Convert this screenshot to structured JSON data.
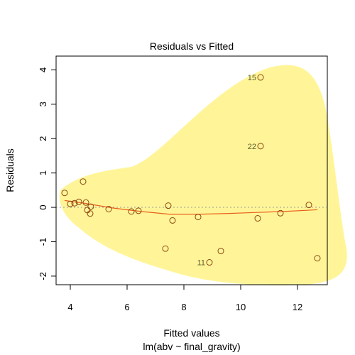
{
  "chart_data": {
    "type": "scatter",
    "title": "Residuals vs Fitted",
    "xlabel": "Fitted values",
    "xlabel_sub": "lm(abv ~ final_gravity)",
    "ylabel": "Residuals",
    "xlim": [
      3.5,
      13.05
    ],
    "ylim": [
      -2.25,
      4.4
    ],
    "xticks": [
      4,
      6,
      8,
      10,
      12
    ],
    "yticks": [
      -2,
      -1,
      0,
      1,
      2,
      3,
      4
    ],
    "point_color": "#8b4513",
    "smooth_color": "#e8601c",
    "highlight_color": "#fff176",
    "points": [
      {
        "x": 3.8,
        "y": 0.42
      },
      {
        "x": 4.0,
        "y": 0.1
      },
      {
        "x": 4.15,
        "y": 0.12
      },
      {
        "x": 4.3,
        "y": 0.16
      },
      {
        "x": 4.45,
        "y": 0.75
      },
      {
        "x": 4.55,
        "y": 0.14
      },
      {
        "x": 4.6,
        "y": -0.08
      },
      {
        "x": 4.7,
        "y": -0.18
      },
      {
        "x": 4.72,
        "y": 0.02
      },
      {
        "x": 5.35,
        "y": -0.05
      },
      {
        "x": 6.15,
        "y": -0.12
      },
      {
        "x": 6.4,
        "y": -0.1
      },
      {
        "x": 7.35,
        "y": -1.2
      },
      {
        "x": 7.45,
        "y": 0.05
      },
      {
        "x": 7.6,
        "y": -0.38
      },
      {
        "x": 8.5,
        "y": -0.28
      },
      {
        "x": 8.9,
        "y": -1.6,
        "label": "11"
      },
      {
        "x": 9.3,
        "y": -1.27
      },
      {
        "x": 10.6,
        "y": -0.32
      },
      {
        "x": 10.7,
        "y": 3.78,
        "label": "15"
      },
      {
        "x": 10.7,
        "y": 1.78,
        "label": "22"
      },
      {
        "x": 11.4,
        "y": -0.17
      },
      {
        "x": 12.4,
        "y": 0.07
      },
      {
        "x": 12.7,
        "y": -1.48
      }
    ],
    "smooth": [
      {
        "x": 3.8,
        "y": 0.2
      },
      {
        "x": 4.5,
        "y": 0.12
      },
      {
        "x": 5.5,
        "y": -0.02
      },
      {
        "x": 6.5,
        "y": -0.12
      },
      {
        "x": 7.5,
        "y": -0.2
      },
      {
        "x": 8.5,
        "y": -0.2
      },
      {
        "x": 9.5,
        "y": -0.18
      },
      {
        "x": 10.5,
        "y": -0.15
      },
      {
        "x": 11.5,
        "y": -0.12
      },
      {
        "x": 12.7,
        "y": -0.07
      }
    ],
    "reference_line": {
      "y": 0,
      "style": "dotted",
      "color": "#999999"
    }
  }
}
